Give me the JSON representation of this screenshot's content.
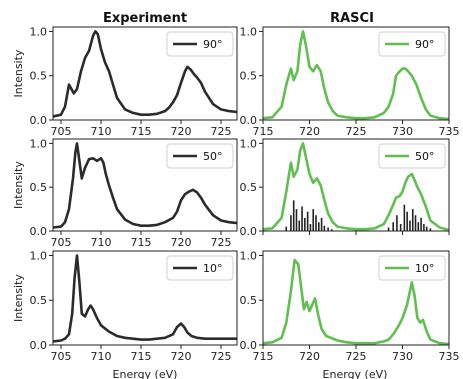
{
  "figure": {
    "columns": [
      {
        "title": "Experiment",
        "line_color": "#2b2b2b"
      },
      {
        "title": "RASCI",
        "line_color": "#5fbf4f"
      }
    ],
    "ylabel": "Intensity",
    "xlabel": "Energy (eV)",
    "stick_color": "#222222"
  },
  "chart_data": [
    {
      "type": "line",
      "column": "Experiment",
      "legend": "90°",
      "xlim": [
        704,
        727
      ],
      "ylim": [
        0,
        1.05
      ],
      "xticks": [
        705,
        710,
        715,
        720,
        725
      ],
      "yticks": [
        0.0,
        0.5,
        1.0
      ],
      "show_xticklabels": true,
      "series": [
        {
          "x": [
            704,
            705,
            705.5,
            706,
            706.3,
            706.6,
            707,
            707.5,
            708,
            708.5,
            709,
            709.3,
            709.6,
            710,
            710.5,
            711,
            711.5,
            712,
            713,
            714,
            715,
            716,
            717,
            718,
            718.5,
            719,
            719.5,
            720,
            720.5,
            720.8,
            721.2,
            721.6,
            722,
            722.5,
            723,
            724,
            725,
            726,
            727
          ],
          "y": [
            0.04,
            0.06,
            0.15,
            0.4,
            0.35,
            0.3,
            0.35,
            0.55,
            0.7,
            0.78,
            0.95,
            1.0,
            0.97,
            0.8,
            0.65,
            0.55,
            0.4,
            0.25,
            0.12,
            0.08,
            0.06,
            0.06,
            0.07,
            0.1,
            0.14,
            0.2,
            0.28,
            0.42,
            0.55,
            0.6,
            0.57,
            0.52,
            0.48,
            0.42,
            0.32,
            0.18,
            0.12,
            0.1,
            0.09
          ]
        }
      ]
    },
    {
      "type": "line",
      "column": "RASCI",
      "legend": "90°",
      "xlim": [
        715,
        735
      ],
      "ylim": [
        0,
        1.05
      ],
      "xticks": [
        715,
        720,
        725,
        730,
        735
      ],
      "yticks": [
        0.0,
        0.5,
        1.0
      ],
      "show_xticklabels": true,
      "series": [
        {
          "x": [
            715,
            716,
            717,
            717.5,
            718,
            718.3,
            718.7,
            719,
            719.3,
            719.6,
            720,
            720.4,
            720.8,
            721.2,
            721.6,
            722,
            722.5,
            723,
            724,
            725,
            726,
            727,
            728,
            728.5,
            729,
            729.3,
            729.7,
            730,
            730.3,
            730.6,
            731,
            731.5,
            732,
            732.5,
            733,
            734,
            735
          ],
          "y": [
            0.02,
            0.03,
            0.15,
            0.4,
            0.58,
            0.45,
            0.55,
            0.85,
            1.0,
            0.85,
            0.6,
            0.55,
            0.62,
            0.55,
            0.35,
            0.2,
            0.1,
            0.05,
            0.03,
            0.02,
            0.02,
            0.03,
            0.08,
            0.15,
            0.3,
            0.5,
            0.55,
            0.58,
            0.58,
            0.55,
            0.5,
            0.4,
            0.25,
            0.12,
            0.05,
            0.02,
            0.01
          ]
        }
      ]
    },
    {
      "type": "line",
      "column": "Experiment",
      "legend": "50°",
      "xlim": [
        704,
        727
      ],
      "ylim": [
        0,
        1.05
      ],
      "xticks": [
        705,
        710,
        715,
        720,
        725
      ],
      "yticks": [
        0.0,
        0.5,
        1.0
      ],
      "show_xticklabels": true,
      "series": [
        {
          "x": [
            704,
            705,
            705.5,
            706,
            706.5,
            706.8,
            707,
            707.3,
            707.6,
            708,
            708.5,
            709,
            709.5,
            710,
            710.3,
            710.6,
            711,
            711.5,
            712,
            713,
            714,
            715,
            716,
            717,
            718,
            719,
            719.5,
            720,
            720.5,
            721,
            721.5,
            722,
            722.5,
            723,
            724,
            725,
            726,
            727
          ],
          "y": [
            0.04,
            0.05,
            0.1,
            0.25,
            0.6,
            0.9,
            1.0,
            0.8,
            0.6,
            0.72,
            0.82,
            0.83,
            0.8,
            0.83,
            0.78,
            0.65,
            0.52,
            0.38,
            0.25,
            0.13,
            0.08,
            0.06,
            0.06,
            0.07,
            0.1,
            0.15,
            0.22,
            0.35,
            0.42,
            0.45,
            0.47,
            0.44,
            0.38,
            0.3,
            0.18,
            0.12,
            0.1,
            0.09
          ]
        }
      ]
    },
    {
      "type": "line",
      "column": "RASCI",
      "legend": "50°",
      "xlim": [
        715,
        735
      ],
      "ylim": [
        0,
        1.05
      ],
      "xticks": [
        715,
        720,
        725,
        730,
        735
      ],
      "yticks": [
        0.0,
        0.5,
        1.0
      ],
      "show_xticklabels": false,
      "series": [
        {
          "x": [
            715,
            716,
            717,
            717.5,
            718,
            718.3,
            718.7,
            719,
            719.3,
            719.6,
            720,
            720.4,
            720.8,
            721.2,
            721.6,
            722,
            722.5,
            723,
            724,
            725,
            726,
            727,
            728,
            728.5,
            729,
            729.3,
            729.7,
            730,
            730.3,
            730.6,
            731,
            731.3,
            731.6,
            732,
            732.5,
            733,
            734,
            735
          ],
          "y": [
            0.02,
            0.03,
            0.15,
            0.45,
            0.78,
            0.62,
            0.7,
            0.92,
            1.0,
            0.85,
            0.65,
            0.55,
            0.6,
            0.52,
            0.35,
            0.2,
            0.1,
            0.05,
            0.03,
            0.02,
            0.02,
            0.03,
            0.08,
            0.18,
            0.3,
            0.38,
            0.4,
            0.45,
            0.55,
            0.62,
            0.65,
            0.58,
            0.5,
            0.42,
            0.28,
            0.12,
            0.04,
            0.01
          ]
        }
      ],
      "sticks": {
        "x": [
          717.5,
          718,
          718.3,
          718.6,
          718.9,
          719.2,
          719.5,
          719.8,
          720.1,
          720.4,
          720.7,
          721,
          721.3,
          721.6,
          722,
          722.4,
          728.5,
          729,
          729.4,
          729.8,
          730.2,
          730.5,
          730.8,
          731.1,
          731.4,
          731.7,
          732,
          732.3,
          732.6,
          733
        ],
        "y": [
          0.05,
          0.18,
          0.35,
          0.25,
          0.12,
          0.28,
          0.15,
          0.22,
          0.08,
          0.25,
          0.18,
          0.1,
          0.15,
          0.06,
          0.04,
          0.02,
          0.04,
          0.1,
          0.18,
          0.08,
          0.3,
          0.22,
          0.12,
          0.25,
          0.18,
          0.1,
          0.15,
          0.08,
          0.05,
          0.03
        ]
      }
    },
    {
      "type": "line",
      "column": "Experiment",
      "legend": "10°",
      "xlim": [
        704,
        727
      ],
      "ylim": [
        0,
        1.05
      ],
      "xticks": [
        705,
        710,
        715,
        720,
        725
      ],
      "yticks": [
        0.0,
        0.5,
        1.0
      ],
      "show_xticklabels": true,
      "series": [
        {
          "x": [
            704,
            705,
            705.5,
            706,
            706.4,
            706.7,
            707,
            707.3,
            707.6,
            708,
            708.4,
            708.7,
            709,
            709.5,
            710,
            711,
            712,
            713,
            714,
            715,
            716,
            717,
            718,
            719,
            719.5,
            720,
            720.4,
            720.8,
            721.3,
            722,
            723,
            724,
            725,
            726,
            727
          ],
          "y": [
            0.04,
            0.05,
            0.07,
            0.12,
            0.35,
            0.75,
            1.0,
            0.7,
            0.35,
            0.32,
            0.4,
            0.44,
            0.4,
            0.3,
            0.22,
            0.15,
            0.1,
            0.08,
            0.07,
            0.06,
            0.06,
            0.07,
            0.08,
            0.12,
            0.2,
            0.24,
            0.2,
            0.14,
            0.1,
            0.08,
            0.07,
            0.07,
            0.07,
            0.07,
            0.07
          ]
        }
      ]
    },
    {
      "type": "line",
      "column": "RASCI",
      "legend": "10°",
      "xlim": [
        715,
        735
      ],
      "ylim": [
        0,
        1.05
      ],
      "xticks": [
        715,
        720,
        725,
        730,
        735
      ],
      "yticks": [
        0.0,
        0.5,
        1.0
      ],
      "show_xticklabels": true,
      "series": [
        {
          "x": [
            715,
            716,
            717,
            717.5,
            718,
            718.4,
            718.8,
            719.1,
            719.4,
            719.7,
            720,
            720.3,
            720.6,
            720.9,
            721.3,
            721.8,
            722.3,
            723,
            724,
            725,
            726,
            727,
            728,
            728.5,
            729,
            729.5,
            730,
            730.5,
            731,
            731.3,
            731.6,
            731.9,
            732.2,
            732.6,
            733,
            734,
            735
          ],
          "y": [
            0.02,
            0.03,
            0.08,
            0.25,
            0.6,
            0.95,
            0.9,
            0.65,
            0.4,
            0.48,
            0.38,
            0.45,
            0.52,
            0.35,
            0.18,
            0.1,
            0.08,
            0.05,
            0.03,
            0.02,
            0.02,
            0.02,
            0.04,
            0.06,
            0.12,
            0.2,
            0.3,
            0.45,
            0.7,
            0.55,
            0.3,
            0.25,
            0.28,
            0.15,
            0.06,
            0.02,
            0.01
          ]
        }
      ]
    }
  ]
}
